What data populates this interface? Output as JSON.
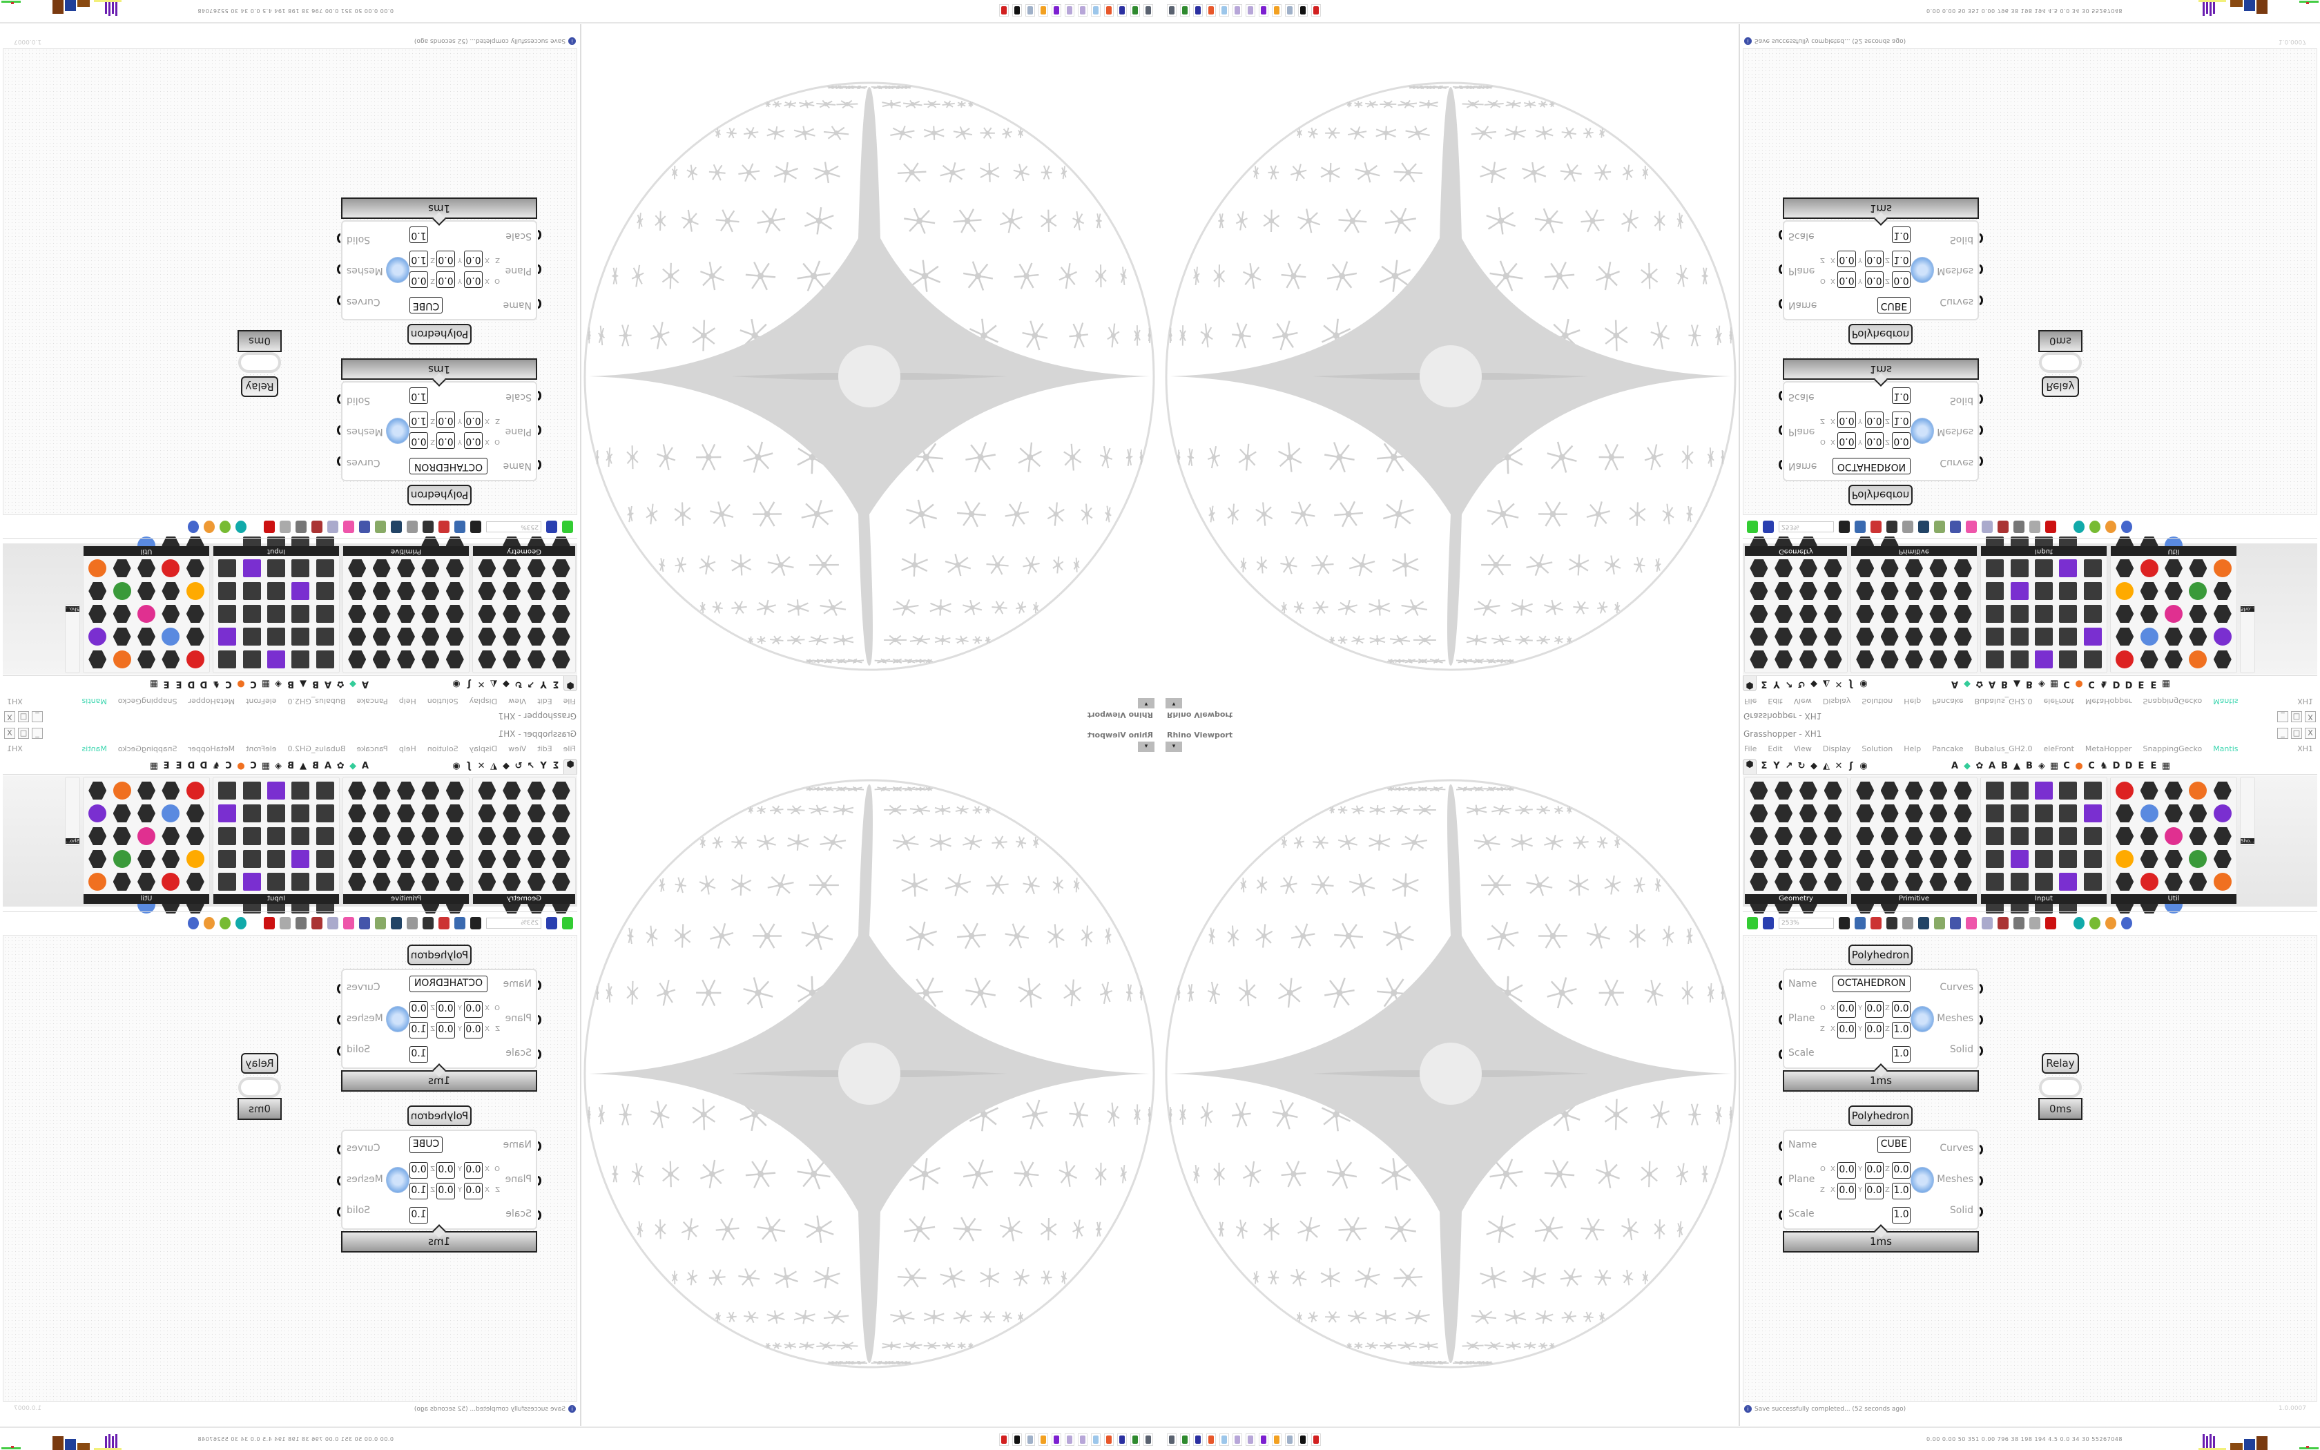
{
  "viewport": {
    "label": "Rhino Viewport",
    "dropdown": "▾"
  },
  "grasshopper": {
    "title": "Grasshopper - XH1",
    "window_buttons": [
      "_",
      "□",
      "X"
    ],
    "menu": [
      "File",
      "Edit",
      "View",
      "Display",
      "Solution",
      "Help",
      "Pancake",
      "Bubalus_GH2.0",
      "eleFront",
      "MetaHopper",
      "SnappingGecko",
      "Mantis"
    ],
    "active_menu": "Mantis",
    "file_name": "XH1",
    "tab_glyphs": [
      "⬢",
      "Σ",
      "Y",
      "↗",
      "↻",
      "◆",
      "◭",
      "✕",
      "ʃ",
      "◉",
      "",
      "A",
      "◆",
      "✿",
      "A",
      "B",
      "▲",
      "B",
      "◈",
      "▦",
      "C",
      "●",
      "C",
      "♞",
      "D",
      "D",
      "E",
      "E",
      "▦"
    ],
    "palette_categories": [
      "Geometry",
      "Primitive",
      "Input",
      "Util"
    ],
    "sho_label": "Sho...",
    "zoom_level": "253%",
    "status": "Save successfully completed... (52 seconds ago)",
    "version": "1.0.0007",
    "accent_color": "#3dd6b0"
  },
  "components": [
    {
      "title": "Polyhedron",
      "inputs": [
        "Name",
        "Plane",
        "Scale"
      ],
      "outputs": [
        "Curves",
        "Meshes",
        "Solid"
      ],
      "name_value": "OCTAHEDRON",
      "origin_label": "O",
      "zaxis_label": "Z",
      "axes": [
        "X",
        "Y",
        "Z"
      ],
      "origin": [
        "0.0",
        "0.0",
        "0.0"
      ],
      "zaxis": [
        "0.0",
        "0.0",
        "1.0"
      ],
      "scale": "1.0",
      "time": "1ms"
    },
    {
      "title": "Polyhedron",
      "inputs": [
        "Name",
        "Plane",
        "Scale"
      ],
      "outputs": [
        "Curves",
        "Meshes",
        "Solid"
      ],
      "name_value": "CUBE",
      "origin_label": "O",
      "zaxis_label": "Z",
      "axes": [
        "X",
        "Y",
        "Z"
      ],
      "origin": [
        "0.0",
        "0.0",
        "0.0"
      ],
      "zaxis": [
        "0.0",
        "0.0",
        "1.0"
      ],
      "scale": "1.0",
      "time": "1ms"
    }
  ],
  "relay": {
    "title": "Relay",
    "time": "0ms"
  },
  "taskbar": {
    "perf": "0.00 0.00 50 351 0.00 796 38 198 194 4.5 0.0 34 30 55267048",
    "app_icon_colors": [
      "#5a6270",
      "#2f8a2f",
      "#2a2fa0",
      "#e8572a",
      "#9cc6ea",
      "#b7a6d8",
      "#b7a6d8",
      "#7c1fd0",
      "#f2a020",
      "#9fb0c8",
      "#111111",
      "#d22020"
    ]
  }
}
